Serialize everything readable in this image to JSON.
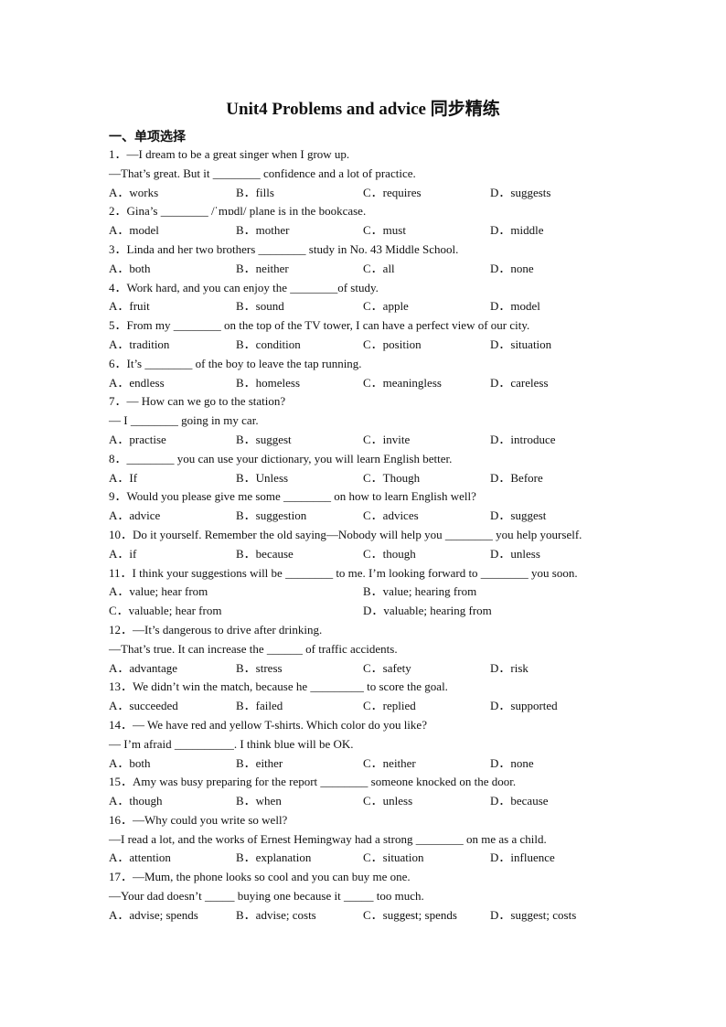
{
  "title": "Unit4 Problems and advice  同步精练",
  "section": "一、单项选择",
  "questions": [
    {
      "stem": [
        "1．—I dream to be a great singer when I grow up.",
        "—That’s great. But it ________ confidence and a lot of practice."
      ],
      "options": [
        "A．works",
        "B．fills",
        "C．requires",
        "D．suggests"
      ]
    },
    {
      "stem": [
        "2．Gina’s ________ /ˈmɒdl/ plane is in the bookcase."
      ],
      "options": [
        "A．model",
        "B．mother",
        "C．must",
        "D．middle"
      ]
    },
    {
      "stem": [
        "3．Linda and her two brothers ________ study in No. 43 Middle School."
      ],
      "options": [
        "A．both",
        "B．neither",
        "C．all",
        "D．none"
      ]
    },
    {
      "stem": [
        "4．Work hard, and you can enjoy the ________of study."
      ],
      "options": [
        "A．fruit",
        "B．sound",
        "C．apple",
        "D．model"
      ]
    },
    {
      "stem": [
        "5．From my ________ on the top of the TV tower, I can have a perfect view of our city."
      ],
      "options": [
        "A．tradition",
        "B．condition",
        "C．position",
        "D．situation"
      ]
    },
    {
      "stem": [
        "6．It’s ________ of the boy to leave the tap running."
      ],
      "options": [
        "A．endless",
        "B．homeless",
        "C．meaningless",
        "D．careless"
      ]
    },
    {
      "stem": [
        "7．— How can we go to the station?",
        "— I ________ going in my car."
      ],
      "options": [
        "A．practise",
        "B．suggest",
        "C．invite",
        "D．introduce"
      ]
    },
    {
      "stem": [
        "8．________ you can use your dictionary, you will learn English better."
      ],
      "options": [
        "A．If",
        "B．Unless",
        "C．Though",
        "D．Before"
      ]
    },
    {
      "stem": [
        "9．Would you please give me some ________ on how to learn English well?"
      ],
      "options": [
        "A．advice",
        "B．suggestion",
        "C．advices",
        "D．suggest"
      ]
    },
    {
      "stem": [
        "10．Do it yourself. Remember the old saying—Nobody will help you ________ you help yourself."
      ],
      "options": [
        "A．if",
        "B．because",
        "C．though",
        "D．unless"
      ]
    },
    {
      "stem": [
        "11．I think your suggestions will be ________ to me. I’m looking forward to ________ you soon."
      ],
      "options": [
        "A．value; hear from",
        "B．value; hearing from",
        "C．valuable; hear from",
        "D．valuable; hearing from"
      ],
      "two_col": true
    },
    {
      "stem": [
        "12．—It’s dangerous to drive after drinking.",
        "—That’s true. It can increase the ______ of traffic accidents."
      ],
      "options": [
        "A．advantage",
        "B．stress",
        "C．safety",
        "D．risk"
      ]
    },
    {
      "stem": [
        "13．We didn’t win the match, because he _________ to score the goal."
      ],
      "options": [
        "A．succeeded",
        "B．failed",
        "C．replied",
        "D．supported"
      ]
    },
    {
      "stem": [
        "14．— We have red and yellow T-shirts. Which color do you like?",
        "— I’m afraid __________. I think blue will be OK."
      ],
      "options": [
        "A．both",
        "B．either",
        "C．neither",
        "D．none"
      ]
    },
    {
      "stem": [
        "15．Amy was busy preparing for the report ________ someone knocked on the door."
      ],
      "options": [
        "A．though",
        "B．when",
        "C．unless",
        "D．because"
      ]
    },
    {
      "stem": [
        "16．—Why could you write so well?",
        "—I read a lot, and the works of Ernest Hemingway had a strong ________ on me as a child."
      ],
      "options": [
        "A．attention",
        "B．explanation",
        "C．situation",
        "D．influence"
      ]
    },
    {
      "stem": [
        "17．—Mum, the phone looks so cool and you can buy me one.",
        "—Your dad doesn’t _____ buying one because it _____ too much."
      ],
      "options": [
        "A．advise; spends",
        "B．advise; costs",
        "C．suggest; spends",
        "D．suggest; costs"
      ]
    }
  ]
}
